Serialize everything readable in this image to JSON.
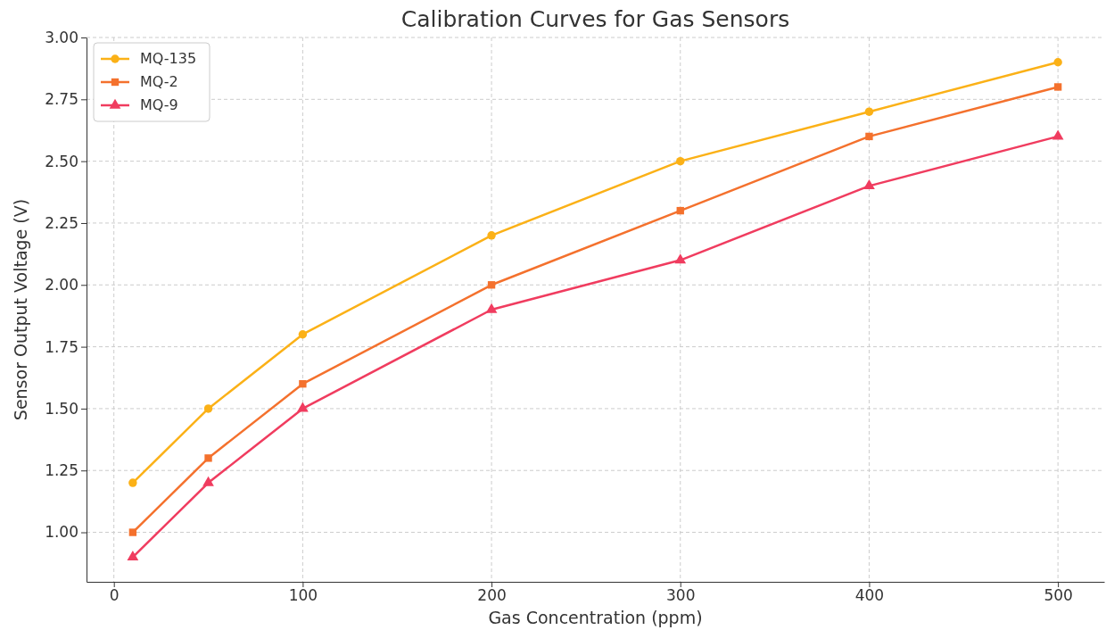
{
  "chart_data": {
    "type": "line",
    "title": "Calibration Curves for Gas Sensors",
    "xlabel": "Gas Concentration (ppm)",
    "ylabel": "Sensor Output Voltage (V)",
    "x": [
      10,
      50,
      100,
      200,
      300,
      400,
      500
    ],
    "series": [
      {
        "name": "MQ-135",
        "color": "#fbb117",
        "marker": "circle",
        "values": [
          1.2,
          1.5,
          1.8,
          2.2,
          2.5,
          2.7,
          2.9
        ]
      },
      {
        "name": "MQ-2",
        "color": "#f4712d",
        "marker": "square",
        "values": [
          1.0,
          1.3,
          1.6,
          2.0,
          2.3,
          2.6,
          2.8
        ]
      },
      {
        "name": "MQ-9",
        "color": "#f03c5f",
        "marker": "triangle",
        "values": [
          0.9,
          1.2,
          1.5,
          1.9,
          2.1,
          2.4,
          2.6
        ]
      }
    ],
    "xlim": [
      -14.5,
      524.5
    ],
    "xticks": [
      0,
      100,
      200,
      300,
      400,
      500
    ],
    "ylim": [
      0.8,
      3.0
    ],
    "yticks": [
      {
        "value": 1.0,
        "label": "1.00"
      },
      {
        "value": 1.25,
        "label": "1.25"
      },
      {
        "value": 1.5,
        "label": "1.50"
      },
      {
        "value": 1.75,
        "label": "1.75"
      },
      {
        "value": 2.0,
        "label": "2.00"
      },
      {
        "value": 2.25,
        "label": "2.25"
      },
      {
        "value": 2.5,
        "label": "2.50"
      },
      {
        "value": 2.75,
        "label": "2.75"
      },
      {
        "value": 3.0,
        "label": "3.00"
      }
    ],
    "grid": true,
    "legend": "top left",
    "line_style": "solid"
  }
}
